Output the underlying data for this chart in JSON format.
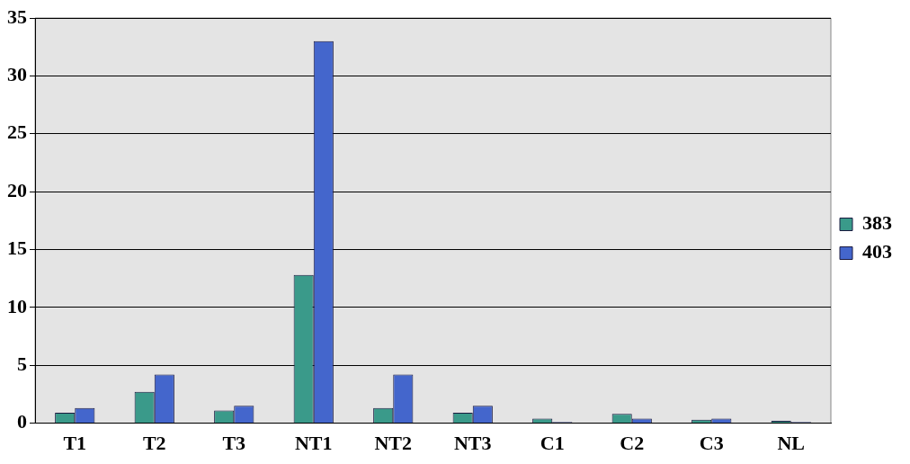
{
  "chart_data": {
    "type": "bar",
    "categories": [
      "T1",
      "T2",
      "T3",
      "NT1",
      "NT2",
      "NT3",
      "C1",
      "C2",
      "C3",
      "NL"
    ],
    "series": [
      {
        "name": "383",
        "color": "#3a9a8a",
        "values": [
          0.9,
          2.7,
          1.1,
          12.8,
          1.3,
          0.9,
          0.4,
          0.8,
          0.3,
          0.2
        ]
      },
      {
        "name": "403",
        "color": "#4466cc",
        "values": [
          1.3,
          4.2,
          1.5,
          33,
          4.2,
          1.5,
          0.1,
          0.4,
          0.4,
          0.1
        ]
      }
    ],
    "ylim": [
      0,
      35
    ],
    "yticks": [
      0,
      5,
      10,
      15,
      20,
      25,
      30,
      35
    ],
    "grid": "y",
    "legend": "right"
  }
}
